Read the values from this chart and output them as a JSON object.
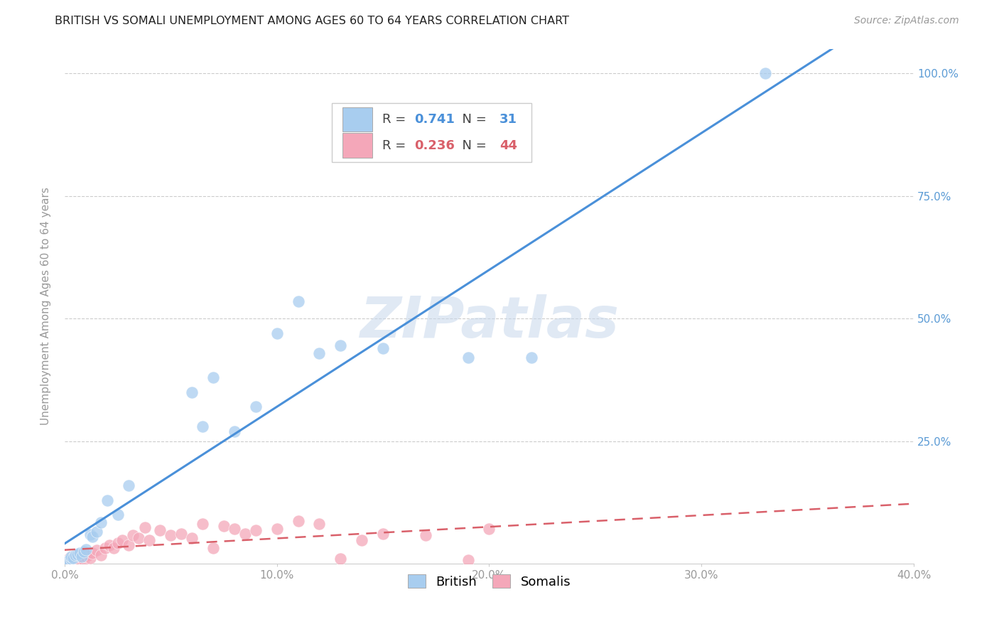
{
  "title": "BRITISH VS SOMALI UNEMPLOYMENT AMONG AGES 60 TO 64 YEARS CORRELATION CHART",
  "source": "Source: ZipAtlas.com",
  "ylabel": "Unemployment Among Ages 60 to 64 years",
  "xlim": [
    0.0,
    0.4
  ],
  "ylim": [
    0.0,
    1.05
  ],
  "xticks": [
    0.0,
    0.1,
    0.2,
    0.3,
    0.4
  ],
  "xticklabels": [
    "0.0%",
    "10.0%",
    "20.0%",
    "30.0%",
    "40.0%"
  ],
  "yticks": [
    0.0,
    0.25,
    0.5,
    0.75,
    1.0
  ],
  "yticklabels_right": [
    "",
    "25.0%",
    "50.0%",
    "75.0%",
    "100.0%"
  ],
  "british_color": "#A8CDEF",
  "somali_color": "#F4A7B9",
  "british_line_color": "#4A90D9",
  "somali_line_color": "#D9606A",
  "british_R": 0.741,
  "british_N": 31,
  "somali_R": 0.236,
  "somali_N": 44,
  "watermark": "ZIPatlas",
  "background_color": "#ffffff",
  "grid_color": "#cccccc",
  "british_x": [
    0.001,
    0.002,
    0.003,
    0.003,
    0.004,
    0.005,
    0.006,
    0.007,
    0.008,
    0.009,
    0.01,
    0.012,
    0.013,
    0.015,
    0.017,
    0.02,
    0.025,
    0.03,
    0.06,
    0.065,
    0.07,
    0.08,
    0.09,
    0.1,
    0.11,
    0.12,
    0.13,
    0.15,
    0.19,
    0.22,
    0.33
  ],
  "british_y": [
    0.005,
    0.008,
    0.01,
    0.015,
    0.012,
    0.018,
    0.02,
    0.022,
    0.015,
    0.025,
    0.03,
    0.06,
    0.055,
    0.065,
    0.085,
    0.13,
    0.1,
    0.16,
    0.35,
    0.28,
    0.38,
    0.27,
    0.32,
    0.47,
    0.535,
    0.43,
    0.445,
    0.44,
    0.42,
    0.42,
    1.0
  ],
  "somali_x": [
    0.001,
    0.002,
    0.003,
    0.004,
    0.005,
    0.006,
    0.007,
    0.008,
    0.009,
    0.01,
    0.011,
    0.012,
    0.013,
    0.015,
    0.017,
    0.019,
    0.021,
    0.023,
    0.025,
    0.027,
    0.03,
    0.032,
    0.035,
    0.038,
    0.04,
    0.045,
    0.05,
    0.055,
    0.06,
    0.065,
    0.07,
    0.075,
    0.08,
    0.085,
    0.09,
    0.1,
    0.11,
    0.12,
    0.13,
    0.14,
    0.15,
    0.17,
    0.19,
    0.2
  ],
  "somali_y": [
    0.005,
    0.01,
    0.008,
    0.012,
    0.015,
    0.01,
    0.018,
    0.02,
    0.008,
    0.015,
    0.018,
    0.012,
    0.022,
    0.028,
    0.018,
    0.032,
    0.038,
    0.032,
    0.042,
    0.048,
    0.038,
    0.058,
    0.052,
    0.075,
    0.048,
    0.068,
    0.058,
    0.062,
    0.052,
    0.082,
    0.032,
    0.078,
    0.072,
    0.062,
    0.068,
    0.072,
    0.088,
    0.082,
    0.01,
    0.048,
    0.062,
    0.058,
    0.008,
    0.072
  ]
}
